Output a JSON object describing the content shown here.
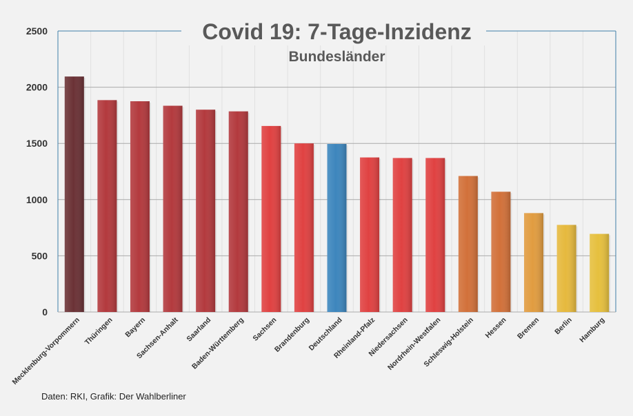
{
  "chart_data": {
    "type": "bar",
    "title": "Covid 19: 7-Tage-Inzidenz",
    "subtitle": "Bundesländer",
    "ylim": [
      0,
      2500
    ],
    "yticks": [
      0,
      500,
      1000,
      1500,
      2000,
      2500
    ],
    "grid": true,
    "categories": [
      "Mecklenburg-Vorpommern",
      "Thüringen",
      "Bayern",
      "Sachsen-Anhalt",
      "Saarland",
      "Baden-Württemberg",
      "Sachsen",
      "Brandenburg",
      "Deutschland",
      "Rheinland-Pfalz",
      "Niedersachsen",
      "Nordrhein-Westfalen",
      "Schleswig-Holstein",
      "Hessen",
      "Bremen",
      "Berlin",
      "Hamburg"
    ],
    "values": [
      2095,
      1885,
      1875,
      1835,
      1800,
      1785,
      1655,
      1500,
      1495,
      1375,
      1370,
      1370,
      1210,
      1070,
      880,
      775,
      695
    ],
    "colors": [
      "#6b3236",
      "#b33a3e",
      "#b33a3e",
      "#b33a3e",
      "#b33a3e",
      "#b33a3e",
      "#e04242",
      "#e04242",
      "#3d86bd",
      "#e04242",
      "#e04242",
      "#e04242",
      "#d2713a",
      "#d2713a",
      "#e19c40",
      "#e6b93e",
      "#e6c03e"
    ]
  },
  "source": "Daten: RKI, Grafik: Der Wahlberliner"
}
